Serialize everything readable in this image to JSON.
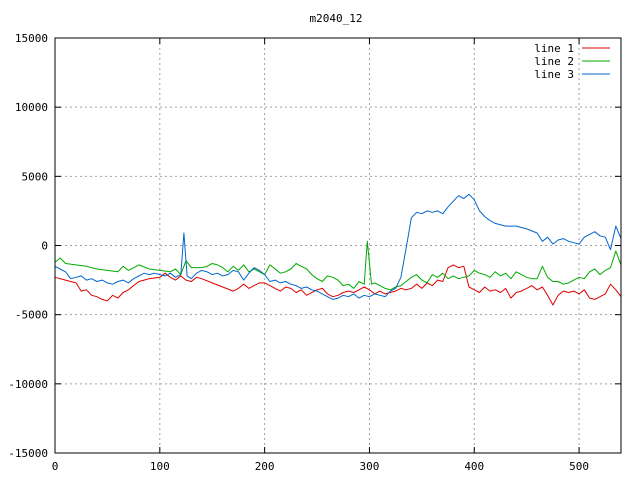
{
  "chart_data": {
    "type": "line",
    "title": "m2040_12",
    "xlabel": "",
    "ylabel": "",
    "xlim": [
      0,
      540
    ],
    "ylim": [
      -15000,
      15000
    ],
    "x_ticks": [
      0,
      100,
      200,
      300,
      400,
      500
    ],
    "y_ticks": [
      -15000,
      -10000,
      -5000,
      0,
      5000,
      10000,
      15000
    ],
    "grid": true,
    "legend_position": "top-right",
    "series": [
      {
        "name": "line 1",
        "color": "#dd0000",
        "points": [
          [
            0,
            -2300
          ],
          [
            10,
            -2500
          ],
          [
            20,
            -2700
          ],
          [
            25,
            -3300
          ],
          [
            30,
            -3200
          ],
          [
            35,
            -3600
          ],
          [
            40,
            -3700
          ],
          [
            45,
            -3900
          ],
          [
            50,
            -4000
          ],
          [
            55,
            -3600
          ],
          [
            60,
            -3800
          ],
          [
            65,
            -3400
          ],
          [
            70,
            -3200
          ],
          [
            75,
            -2900
          ],
          [
            80,
            -2600
          ],
          [
            85,
            -2500
          ],
          [
            90,
            -2400
          ],
          [
            100,
            -2300
          ],
          [
            105,
            -2000
          ],
          [
            110,
            -2300
          ],
          [
            115,
            -2500
          ],
          [
            120,
            -2200
          ],
          [
            125,
            -2500
          ],
          [
            130,
            -2600
          ],
          [
            135,
            -2300
          ],
          [
            140,
            -2400
          ],
          [
            150,
            -2700
          ],
          [
            160,
            -3000
          ],
          [
            170,
            -3300
          ],
          [
            175,
            -3100
          ],
          [
            180,
            -2800
          ],
          [
            185,
            -3100
          ],
          [
            190,
            -2900
          ],
          [
            195,
            -2700
          ],
          [
            200,
            -2700
          ],
          [
            205,
            -2900
          ],
          [
            210,
            -3100
          ],
          [
            215,
            -3300
          ],
          [
            220,
            -3000
          ],
          [
            225,
            -3100
          ],
          [
            230,
            -3400
          ],
          [
            235,
            -3200
          ],
          [
            240,
            -3600
          ],
          [
            250,
            -3200
          ],
          [
            255,
            -3100
          ],
          [
            260,
            -3500
          ],
          [
            265,
            -3700
          ],
          [
            270,
            -3600
          ],
          [
            275,
            -3400
          ],
          [
            280,
            -3300
          ],
          [
            285,
            -3400
          ],
          [
            290,
            -3200
          ],
          [
            295,
            -3000
          ],
          [
            300,
            -3200
          ],
          [
            305,
            -3500
          ],
          [
            310,
            -3300
          ],
          [
            315,
            -3500
          ],
          [
            320,
            -3400
          ],
          [
            325,
            -3300
          ],
          [
            330,
            -3100
          ],
          [
            335,
            -3200
          ],
          [
            340,
            -3100
          ],
          [
            345,
            -2800
          ],
          [
            350,
            -3100
          ],
          [
            355,
            -2700
          ],
          [
            360,
            -2900
          ],
          [
            365,
            -2500
          ],
          [
            370,
            -2600
          ],
          [
            375,
            -1600
          ],
          [
            380,
            -1400
          ],
          [
            385,
            -1600
          ],
          [
            390,
            -1500
          ],
          [
            395,
            -3000
          ],
          [
            400,
            -3200
          ],
          [
            405,
            -3400
          ],
          [
            410,
            -3000
          ],
          [
            415,
            -3300
          ],
          [
            420,
            -3200
          ],
          [
            425,
            -3400
          ],
          [
            430,
            -3100
          ],
          [
            435,
            -3800
          ],
          [
            440,
            -3400
          ],
          [
            445,
            -3300
          ],
          [
            450,
            -3100
          ],
          [
            455,
            -2900
          ],
          [
            460,
            -3200
          ],
          [
            465,
            -3000
          ],
          [
            470,
            -3600
          ],
          [
            475,
            -4300
          ],
          [
            480,
            -3600
          ],
          [
            485,
            -3300
          ],
          [
            490,
            -3400
          ],
          [
            495,
            -3300
          ],
          [
            500,
            -3500
          ],
          [
            505,
            -3200
          ],
          [
            510,
            -3800
          ],
          [
            515,
            -3900
          ],
          [
            520,
            -3700
          ],
          [
            525,
            -3500
          ],
          [
            530,
            -2800
          ],
          [
            535,
            -3200
          ],
          [
            540,
            -3700
          ]
        ]
      },
      {
        "name": "line 2",
        "color": "#00aa00",
        "points": [
          [
            0,
            -1200
          ],
          [
            5,
            -900
          ],
          [
            10,
            -1300
          ],
          [
            20,
            -1400
          ],
          [
            30,
            -1500
          ],
          [
            40,
            -1700
          ],
          [
            50,
            -1800
          ],
          [
            60,
            -1900
          ],
          [
            65,
            -1500
          ],
          [
            70,
            -1800
          ],
          [
            80,
            -1400
          ],
          [
            90,
            -1700
          ],
          [
            100,
            -1800
          ],
          [
            110,
            -1900
          ],
          [
            115,
            -1700
          ],
          [
            120,
            -2100
          ],
          [
            125,
            -1100
          ],
          [
            130,
            -1600
          ],
          [
            140,
            -1600
          ],
          [
            145,
            -1500
          ],
          [
            150,
            -1300
          ],
          [
            155,
            -1400
          ],
          [
            160,
            -1600
          ],
          [
            165,
            -1900
          ],
          [
            170,
            -1500
          ],
          [
            175,
            -1800
          ],
          [
            180,
            -1400
          ],
          [
            185,
            -1900
          ],
          [
            190,
            -1700
          ],
          [
            195,
            -1900
          ],
          [
            200,
            -2100
          ],
          [
            205,
            -1400
          ],
          [
            210,
            -1700
          ],
          [
            215,
            -2000
          ],
          [
            220,
            -1900
          ],
          [
            225,
            -1700
          ],
          [
            230,
            -1300
          ],
          [
            235,
            -1500
          ],
          [
            240,
            -1700
          ],
          [
            245,
            -2100
          ],
          [
            250,
            -2400
          ],
          [
            255,
            -2600
          ],
          [
            260,
            -2200
          ],
          [
            265,
            -2300
          ],
          [
            270,
            -2500
          ],
          [
            275,
            -2900
          ],
          [
            280,
            -2800
          ],
          [
            285,
            -3100
          ],
          [
            290,
            -2600
          ],
          [
            295,
            -2800
          ],
          [
            298,
            300
          ],
          [
            302,
            -2800
          ],
          [
            305,
            -2700
          ],
          [
            310,
            -2900
          ],
          [
            315,
            -3100
          ],
          [
            320,
            -3200
          ],
          [
            325,
            -3000
          ],
          [
            330,
            -2900
          ],
          [
            335,
            -2600
          ],
          [
            340,
            -2300
          ],
          [
            345,
            -2100
          ],
          [
            350,
            -2500
          ],
          [
            355,
            -2700
          ],
          [
            360,
            -2100
          ],
          [
            365,
            -2300
          ],
          [
            370,
            -2000
          ],
          [
            375,
            -2400
          ],
          [
            380,
            -2200
          ],
          [
            385,
            -2400
          ],
          [
            390,
            -2300
          ],
          [
            395,
            -2200
          ],
          [
            400,
            -1800
          ],
          [
            405,
            -2000
          ],
          [
            410,
            -2100
          ],
          [
            415,
            -2300
          ],
          [
            420,
            -1900
          ],
          [
            425,
            -2200
          ],
          [
            430,
            -2000
          ],
          [
            435,
            -2400
          ],
          [
            440,
            -1900
          ],
          [
            445,
            -2100
          ],
          [
            450,
            -2300
          ],
          [
            455,
            -2400
          ],
          [
            460,
            -2400
          ],
          [
            465,
            -1500
          ],
          [
            470,
            -2300
          ],
          [
            475,
            -2600
          ],
          [
            480,
            -2600
          ],
          [
            485,
            -2800
          ],
          [
            490,
            -2700
          ],
          [
            495,
            -2500
          ],
          [
            500,
            -2300
          ],
          [
            505,
            -2400
          ],
          [
            510,
            -1900
          ],
          [
            515,
            -1700
          ],
          [
            520,
            -2100
          ],
          [
            525,
            -1800
          ],
          [
            530,
            -1600
          ],
          [
            535,
            -400
          ],
          [
            540,
            -1400
          ]
        ]
      },
      {
        "name": "line 3",
        "color": "#0066cc",
        "points": [
          [
            0,
            -1500
          ],
          [
            5,
            -1700
          ],
          [
            10,
            -1900
          ],
          [
            15,
            -2400
          ],
          [
            20,
            -2300
          ],
          [
            25,
            -2200
          ],
          [
            30,
            -2500
          ],
          [
            35,
            -2400
          ],
          [
            40,
            -2600
          ],
          [
            45,
            -2500
          ],
          [
            50,
            -2700
          ],
          [
            55,
            -2800
          ],
          [
            60,
            -2600
          ],
          [
            65,
            -2500
          ],
          [
            70,
            -2700
          ],
          [
            75,
            -2400
          ],
          [
            80,
            -2200
          ],
          [
            85,
            -2000
          ],
          [
            90,
            -2100
          ],
          [
            95,
            -2000
          ],
          [
            100,
            -2100
          ],
          [
            105,
            -2200
          ],
          [
            110,
            -2000
          ],
          [
            115,
            -2300
          ],
          [
            120,
            -2100
          ],
          [
            123,
            900
          ],
          [
            126,
            -2200
          ],
          [
            130,
            -2400
          ],
          [
            135,
            -2000
          ],
          [
            140,
            -1800
          ],
          [
            145,
            -1900
          ],
          [
            150,
            -2100
          ],
          [
            155,
            -2000
          ],
          [
            160,
            -2200
          ],
          [
            165,
            -2100
          ],
          [
            170,
            -1800
          ],
          [
            175,
            -1900
          ],
          [
            180,
            -2500
          ],
          [
            185,
            -2000
          ],
          [
            190,
            -1600
          ],
          [
            195,
            -1800
          ],
          [
            200,
            -2100
          ],
          [
            205,
            -2600
          ],
          [
            210,
            -2500
          ],
          [
            215,
            -2700
          ],
          [
            220,
            -2600
          ],
          [
            225,
            -2800
          ],
          [
            230,
            -2900
          ],
          [
            235,
            -3100
          ],
          [
            240,
            -3000
          ],
          [
            245,
            -3200
          ],
          [
            250,
            -3300
          ],
          [
            255,
            -3500
          ],
          [
            260,
            -3700
          ],
          [
            265,
            -3900
          ],
          [
            270,
            -3800
          ],
          [
            275,
            -3600
          ],
          [
            280,
            -3700
          ],
          [
            285,
            -3500
          ],
          [
            290,
            -3800
          ],
          [
            295,
            -3600
          ],
          [
            300,
            -3700
          ],
          [
            305,
            -3500
          ],
          [
            310,
            -3600
          ],
          [
            315,
            -3700
          ],
          [
            320,
            -3300
          ],
          [
            325,
            -3100
          ],
          [
            330,
            -2300
          ],
          [
            335,
            -200
          ],
          [
            340,
            2000
          ],
          [
            345,
            2400
          ],
          [
            350,
            2300
          ],
          [
            355,
            2500
          ],
          [
            360,
            2400
          ],
          [
            365,
            2500
          ],
          [
            370,
            2300
          ],
          [
            375,
            2800
          ],
          [
            380,
            3200
          ],
          [
            385,
            3600
          ],
          [
            390,
            3400
          ],
          [
            395,
            3700
          ],
          [
            400,
            3300
          ],
          [
            405,
            2500
          ],
          [
            410,
            2100
          ],
          [
            415,
            1800
          ],
          [
            420,
            1600
          ],
          [
            430,
            1400
          ],
          [
            440,
            1400
          ],
          [
            450,
            1200
          ],
          [
            460,
            900
          ],
          [
            465,
            300
          ],
          [
            470,
            600
          ],
          [
            475,
            100
          ],
          [
            480,
            400
          ],
          [
            485,
            500
          ],
          [
            490,
            300
          ],
          [
            495,
            200
          ],
          [
            500,
            100
          ],
          [
            505,
            600
          ],
          [
            510,
            800
          ],
          [
            515,
            1000
          ],
          [
            520,
            700
          ],
          [
            525,
            600
          ],
          [
            530,
            -300
          ],
          [
            535,
            1400
          ],
          [
            540,
            500
          ]
        ]
      }
    ]
  }
}
